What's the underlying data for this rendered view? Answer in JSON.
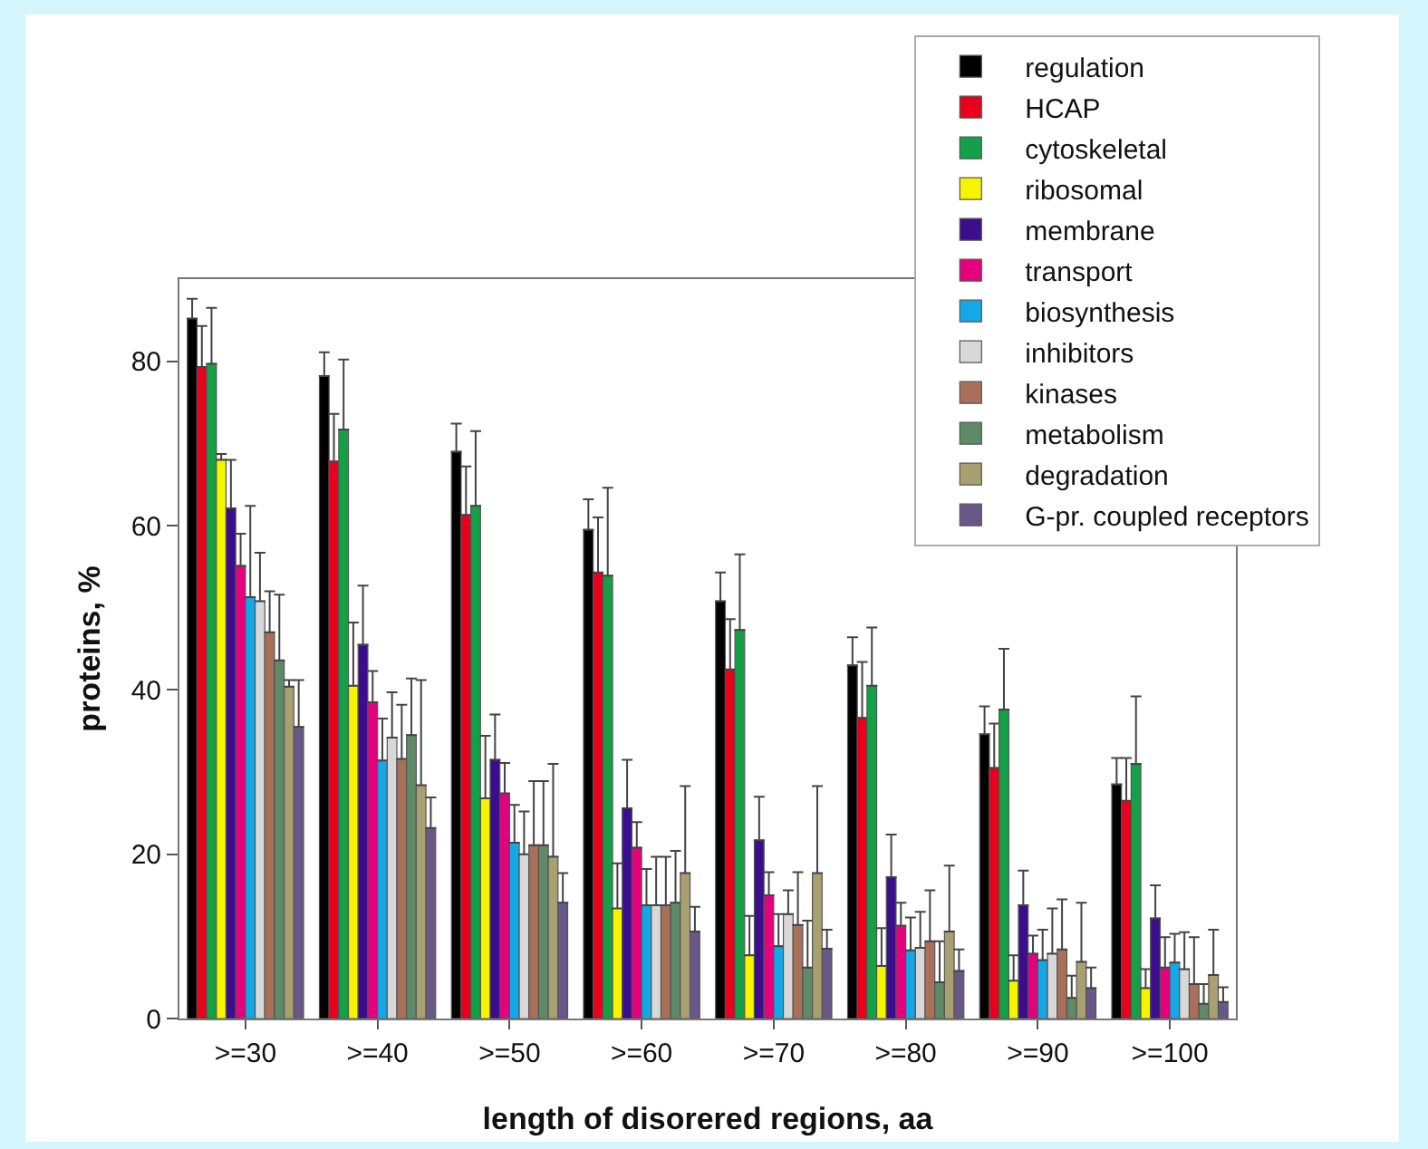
{
  "chart_data": {
    "type": "bar",
    "xlabel": "length of disorered regions, aa",
    "ylabel": "proteins, %",
    "categories": [
      ">=30",
      ">=40",
      ">=50",
      ">=60",
      ">=70",
      ">=80",
      ">=90",
      ">=100"
    ],
    "ylim": [
      0,
      90
    ],
    "yticks": [
      0,
      20,
      40,
      60,
      80
    ],
    "grid": false,
    "legend": "top right",
    "series": [
      {
        "name": "regulation",
        "color": "#000000",
        "values": [
          85.2,
          78.2,
          69,
          59.5,
          50.8,
          43,
          34.6,
          28.5
        ],
        "errors": [
          [
            85.2,
            87.6
          ],
          [
            78.2,
            81.1
          ],
          [
            69,
            72.4
          ],
          [
            59.5,
            63.2
          ],
          [
            50.8,
            54.3
          ],
          [
            43,
            46.4
          ],
          [
            34.6,
            38
          ],
          [
            28.5,
            31.7
          ]
        ]
      },
      {
        "name": "HCAP",
        "color": "#e8001c",
        "values": [
          79.3,
          67.8,
          61.3,
          54.3,
          42.5,
          36.6,
          30.5,
          26.5
        ],
        "errors": [
          [
            79.3,
            84.3
          ],
          [
            67.8,
            73.6
          ],
          [
            61.3,
            67.2
          ],
          [
            54.3,
            61
          ],
          [
            42.5,
            48.6
          ],
          [
            36.6,
            43.4
          ],
          [
            30.5,
            35.9
          ],
          [
            26.5,
            31.7
          ]
        ]
      },
      {
        "name": "cytoskeletal",
        "color": "#14a046",
        "values": [
          79.7,
          71.7,
          62.4,
          53.9,
          47.3,
          40.5,
          37.6,
          31
        ],
        "errors": [
          [
            79.7,
            86.5
          ],
          [
            71.7,
            80.2
          ],
          [
            62.4,
            71.5
          ],
          [
            53.9,
            64.6
          ],
          [
            47.3,
            56.5
          ],
          [
            40.5,
            47.6
          ],
          [
            37.6,
            45
          ],
          [
            31,
            39.2
          ]
        ]
      },
      {
        "name": "ribosomal",
        "color": "#f5f500",
        "values": [
          68,
          40.5,
          26.8,
          13.4,
          7.7,
          6.4,
          4.6,
          3.7
        ],
        "errors": [
          [
            68,
            68.7
          ],
          [
            40.5,
            48.2
          ],
          [
            26.8,
            34.4
          ],
          [
            13.4,
            18.9
          ],
          [
            7.7,
            12.5
          ],
          [
            6.4,
            11
          ],
          [
            4.6,
            7.7
          ],
          [
            3.7,
            6
          ]
        ]
      },
      {
        "name": "membrane",
        "color": "#3a0e8c",
        "values": [
          62.1,
          45.5,
          31.5,
          25.6,
          21.7,
          17.2,
          13.8,
          12.2
        ],
        "errors": [
          [
            62.1,
            68
          ],
          [
            45.5,
            52.7
          ],
          [
            31.5,
            37
          ],
          [
            25.6,
            31.5
          ],
          [
            21.7,
            27
          ],
          [
            17.2,
            22.4
          ],
          [
            13.8,
            18
          ],
          [
            12.2,
            16.2
          ]
        ]
      },
      {
        "name": "transport",
        "color": "#e6007e",
        "values": [
          55.1,
          38.5,
          27.4,
          20.8,
          15,
          11.3,
          7.9,
          6.2
        ],
        "errors": [
          [
            55.1,
            59
          ],
          [
            38.5,
            42.3
          ],
          [
            27.4,
            31.1
          ],
          [
            20.8,
            23.9
          ],
          [
            15,
            17.8
          ],
          [
            11.3,
            14.1
          ],
          [
            7.9,
            10.1
          ],
          [
            6.2,
            9.9
          ]
        ]
      },
      {
        "name": "biosynthesis",
        "color": "#14a8e6",
        "values": [
          51.3,
          31.4,
          21.4,
          13.8,
          8.8,
          8.3,
          7.1,
          6.8
        ],
        "errors": [
          [
            51.3,
            62.4
          ],
          [
            31.4,
            36.5
          ],
          [
            21.4,
            26
          ],
          [
            13.8,
            18.2
          ],
          [
            8.8,
            12.7
          ],
          [
            8.3,
            12.3
          ],
          [
            7.1,
            10.8
          ],
          [
            6.8,
            10.3
          ]
        ]
      },
      {
        "name": "inhibitors",
        "color": "#d8d8d8",
        "values": [
          50.8,
          34.2,
          20,
          13.8,
          12.7,
          8.6,
          7.9,
          6
        ],
        "errors": [
          [
            50.8,
            56.7
          ],
          [
            34.2,
            39.7
          ],
          [
            20,
            25.2
          ],
          [
            13.8,
            19.7
          ],
          [
            12.7,
            15.6
          ],
          [
            8.6,
            13
          ],
          [
            7.9,
            13.4
          ],
          [
            6,
            10.5
          ]
        ]
      },
      {
        "name": "kinases",
        "color": "#a87058",
        "values": [
          47,
          31.6,
          21.1,
          13.8,
          11.4,
          9.4,
          8.4,
          4.2
        ],
        "errors": [
          [
            47,
            52
          ],
          [
            31.6,
            38.2
          ],
          [
            21.1,
            28.9
          ],
          [
            13.8,
            19.7
          ],
          [
            11.4,
            17.8
          ],
          [
            9.4,
            15.6
          ],
          [
            8.4,
            14.5
          ],
          [
            4.2,
            9.9
          ]
        ]
      },
      {
        "name": "metabolism",
        "color": "#5e8a68",
        "values": [
          43.6,
          34.5,
          21.1,
          14.1,
          6.2,
          4.4,
          2.5,
          1.8
        ],
        "errors": [
          [
            43.6,
            51.6
          ],
          [
            34.5,
            41.4
          ],
          [
            21.1,
            28.9
          ],
          [
            14.1,
            20.4
          ],
          [
            6.2,
            11.9
          ],
          [
            4.4,
            9.4
          ],
          [
            2.5,
            5.2
          ],
          [
            1.8,
            4.2
          ]
        ]
      },
      {
        "name": "degradation",
        "color": "#a8a070",
        "values": [
          40.4,
          28.4,
          19.7,
          17.7,
          17.7,
          10.6,
          6.9,
          5.3
        ],
        "errors": [
          [
            40.4,
            41.2
          ],
          [
            28.4,
            41.2
          ],
          [
            19.7,
            31
          ],
          [
            17.7,
            28.3
          ],
          [
            17.7,
            28.3
          ],
          [
            10.6,
            18.6
          ],
          [
            6.9,
            14.1
          ],
          [
            5.3,
            10.8
          ]
        ]
      },
      {
        "name": "G-pr. coupled receptors",
        "color": "#685888",
        "values": [
          35.5,
          23.2,
          14.1,
          10.6,
          8.5,
          5.8,
          3.7,
          2
        ],
        "errors": [
          [
            35.5,
            41.2
          ],
          [
            23.2,
            26.9
          ],
          [
            14.1,
            17.7
          ],
          [
            10.6,
            13.6
          ],
          [
            8.5,
            10.8
          ],
          [
            5.8,
            8.4
          ],
          [
            3.7,
            6.2
          ],
          [
            2,
            3.8
          ]
        ]
      }
    ]
  }
}
